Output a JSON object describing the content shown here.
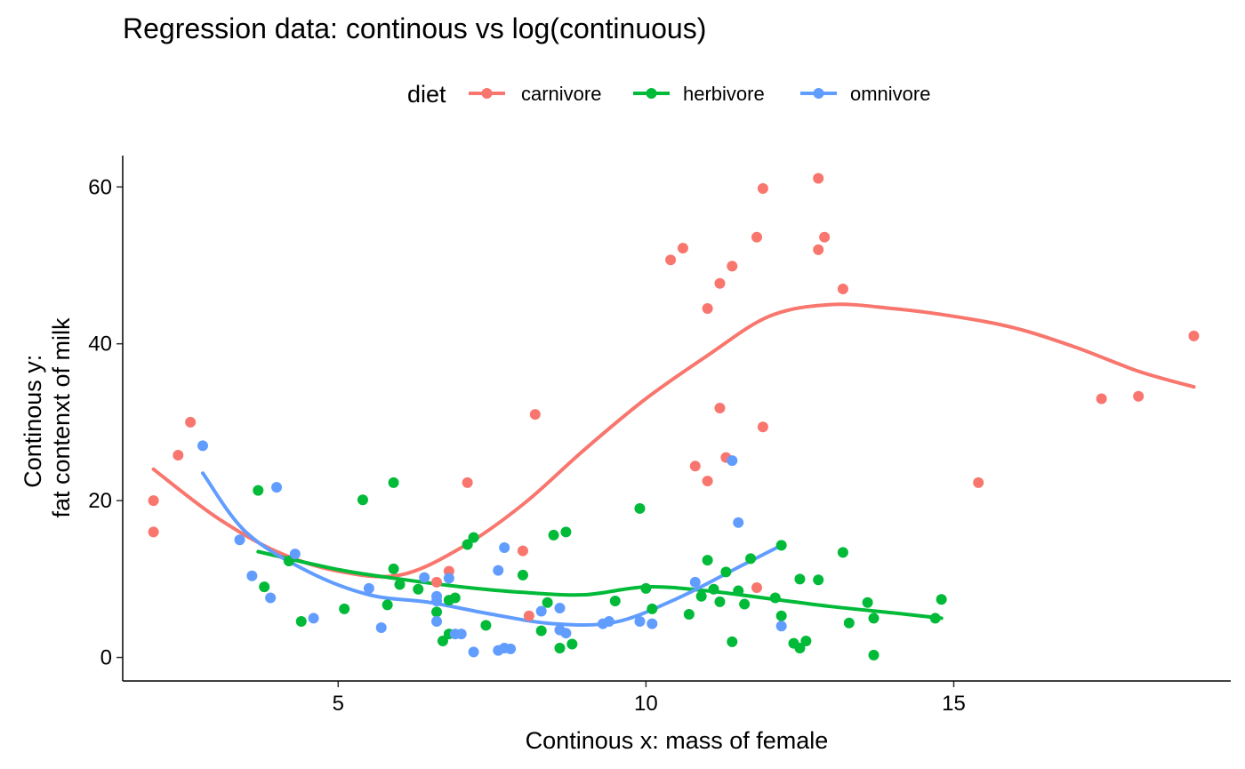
{
  "chart_data": {
    "type": "scatter",
    "title": "Regression data: continous vs log(continuous)",
    "xlabel": "Continous x: mass of female",
    "ylabel_lines": [
      "Continous y:",
      "fat contenxt of milk"
    ],
    "xlim": [
      1.5,
      19.5
    ],
    "ylim": [
      -3,
      64
    ],
    "x_ticks": [
      5,
      10,
      15
    ],
    "y_ticks": [
      0,
      20,
      40,
      60
    ],
    "grid": false,
    "legend": {
      "title": "diet",
      "position": "top"
    },
    "series": [
      {
        "name": "carnivore",
        "color": "#F8766D",
        "points": [
          [
            2,
            20
          ],
          [
            2,
            16
          ],
          [
            2.4,
            25.8
          ],
          [
            2.6,
            30
          ],
          [
            6.6,
            9.6
          ],
          [
            6.8,
            11
          ],
          [
            7.1,
            22.3
          ],
          [
            8,
            13.6
          ],
          [
            8.1,
            5.3
          ],
          [
            8.2,
            31
          ],
          [
            10.4,
            50.7
          ],
          [
            10.6,
            52.2
          ],
          [
            10.8,
            24.4
          ],
          [
            11,
            22.5
          ],
          [
            11,
            44.5
          ],
          [
            11.2,
            31.8
          ],
          [
            11.2,
            47.7
          ],
          [
            11.3,
            25.5
          ],
          [
            11.4,
            49.9
          ],
          [
            11.8,
            53.6
          ],
          [
            11.8,
            8.9
          ],
          [
            11.9,
            29.4
          ],
          [
            11.9,
            59.8
          ],
          [
            12.8,
            61.1
          ],
          [
            12.8,
            52
          ],
          [
            12.9,
            53.6
          ],
          [
            13.2,
            47
          ],
          [
            15.4,
            22.3
          ],
          [
            17.4,
            33
          ],
          [
            18,
            33.3
          ],
          [
            18.9,
            41
          ]
        ],
        "smooth": [
          [
            2,
            24
          ],
          [
            3,
            18
          ],
          [
            4,
            13.5
          ],
          [
            5,
            11
          ],
          [
            6,
            10.5
          ],
          [
            7,
            14
          ],
          [
            8,
            19.5
          ],
          [
            9,
            26.5
          ],
          [
            10,
            33
          ],
          [
            11,
            38.5
          ],
          [
            12,
            43.5
          ],
          [
            13,
            45
          ],
          [
            14,
            44.5
          ],
          [
            15,
            43.5
          ],
          [
            16,
            42
          ],
          [
            17,
            39.5
          ],
          [
            18,
            36.5
          ],
          [
            18.9,
            34.5
          ]
        ]
      },
      {
        "name": "herbivore",
        "color": "#00BA38",
        "points": [
          [
            3.7,
            21.3
          ],
          [
            3.8,
            9
          ],
          [
            4.2,
            12.3
          ],
          [
            4.4,
            4.6
          ],
          [
            5.1,
            6.2
          ],
          [
            5.4,
            20.1
          ],
          [
            5.8,
            6.7
          ],
          [
            5.9,
            11.3
          ],
          [
            5.9,
            22.3
          ],
          [
            6,
            9.3
          ],
          [
            6.3,
            8.7
          ],
          [
            6.6,
            5.8
          ],
          [
            6.7,
            2.1
          ],
          [
            6.8,
            3
          ],
          [
            6.8,
            7.3
          ],
          [
            6.9,
            7.6
          ],
          [
            7.1,
            14.4
          ],
          [
            7.2,
            15.3
          ],
          [
            7.4,
            4.1
          ],
          [
            8,
            10.5
          ],
          [
            8.3,
            3.4
          ],
          [
            8.4,
            7
          ],
          [
            8.5,
            15.6
          ],
          [
            8.6,
            1.2
          ],
          [
            8.7,
            16
          ],
          [
            8.8,
            1.7
          ],
          [
            9.5,
            7.2
          ],
          [
            9.9,
            19
          ],
          [
            10,
            8.8
          ],
          [
            10.1,
            6.2
          ],
          [
            10.7,
            5.5
          ],
          [
            10.9,
            7.8
          ],
          [
            11,
            12.4
          ],
          [
            11.1,
            8.7
          ],
          [
            11.2,
            7.1
          ],
          [
            11.3,
            10.9
          ],
          [
            11.4,
            2
          ],
          [
            11.5,
            8.5
          ],
          [
            11.6,
            6.8
          ],
          [
            11.7,
            12.6
          ],
          [
            12.1,
            7.6
          ],
          [
            12.2,
            5.3
          ],
          [
            12.2,
            14.3
          ],
          [
            12.4,
            1.8
          ],
          [
            12.5,
            1.2
          ],
          [
            12.5,
            10
          ],
          [
            12.6,
            2.1
          ],
          [
            12.8,
            9.9
          ],
          [
            13.2,
            13.4
          ],
          [
            13.3,
            4.4
          ],
          [
            13.6,
            7
          ],
          [
            13.7,
            0.3
          ],
          [
            13.7,
            5
          ],
          [
            14.7,
            5
          ],
          [
            14.8,
            7.4
          ]
        ],
        "smooth": [
          [
            3.7,
            13.5
          ],
          [
            5,
            11.2
          ],
          [
            6,
            10
          ],
          [
            7,
            9
          ],
          [
            8,
            8.3
          ],
          [
            9,
            8
          ],
          [
            10,
            9
          ],
          [
            11,
            8.5
          ],
          [
            12,
            7.5
          ],
          [
            13,
            6.5
          ],
          [
            14,
            5.7
          ],
          [
            14.8,
            5
          ]
        ]
      },
      {
        "name": "omnivore",
        "color": "#619CFF",
        "points": [
          [
            2.8,
            27
          ],
          [
            3.4,
            15
          ],
          [
            3.6,
            10.4
          ],
          [
            3.9,
            7.6
          ],
          [
            4,
            21.7
          ],
          [
            4.3,
            13.2
          ],
          [
            4.6,
            5
          ],
          [
            5.5,
            8.8
          ],
          [
            5.7,
            3.8
          ],
          [
            6.4,
            10.2
          ],
          [
            6.6,
            7.2
          ],
          [
            6.6,
            4.6
          ],
          [
            6.6,
            7.8
          ],
          [
            6.8,
            10.1
          ],
          [
            6.9,
            3
          ],
          [
            7,
            3
          ],
          [
            7.2,
            0.7
          ],
          [
            7.6,
            11.1
          ],
          [
            7.6,
            0.9
          ],
          [
            7.7,
            14
          ],
          [
            7.7,
            1.2
          ],
          [
            7.8,
            1.1
          ],
          [
            8.3,
            5.9
          ],
          [
            8.6,
            6.3
          ],
          [
            8.6,
            3.5
          ],
          [
            8.7,
            3.1
          ],
          [
            9.3,
            4.3
          ],
          [
            9.4,
            4.6
          ],
          [
            9.9,
            4.6
          ],
          [
            10.1,
            4.3
          ],
          [
            10.8,
            9.6
          ],
          [
            11.4,
            25.1
          ],
          [
            11.5,
            17.2
          ],
          [
            12.2,
            4
          ]
        ],
        "smooth": [
          [
            2.8,
            23.5
          ],
          [
            3.5,
            16
          ],
          [
            4.5,
            11
          ],
          [
            5.5,
            8
          ],
          [
            6.5,
            7
          ],
          [
            7.5,
            5.5
          ],
          [
            8.5,
            4.3
          ],
          [
            9.5,
            4.5
          ],
          [
            10.5,
            7.5
          ],
          [
            11.5,
            11.5
          ],
          [
            12.2,
            14.3
          ]
        ]
      }
    ]
  }
}
